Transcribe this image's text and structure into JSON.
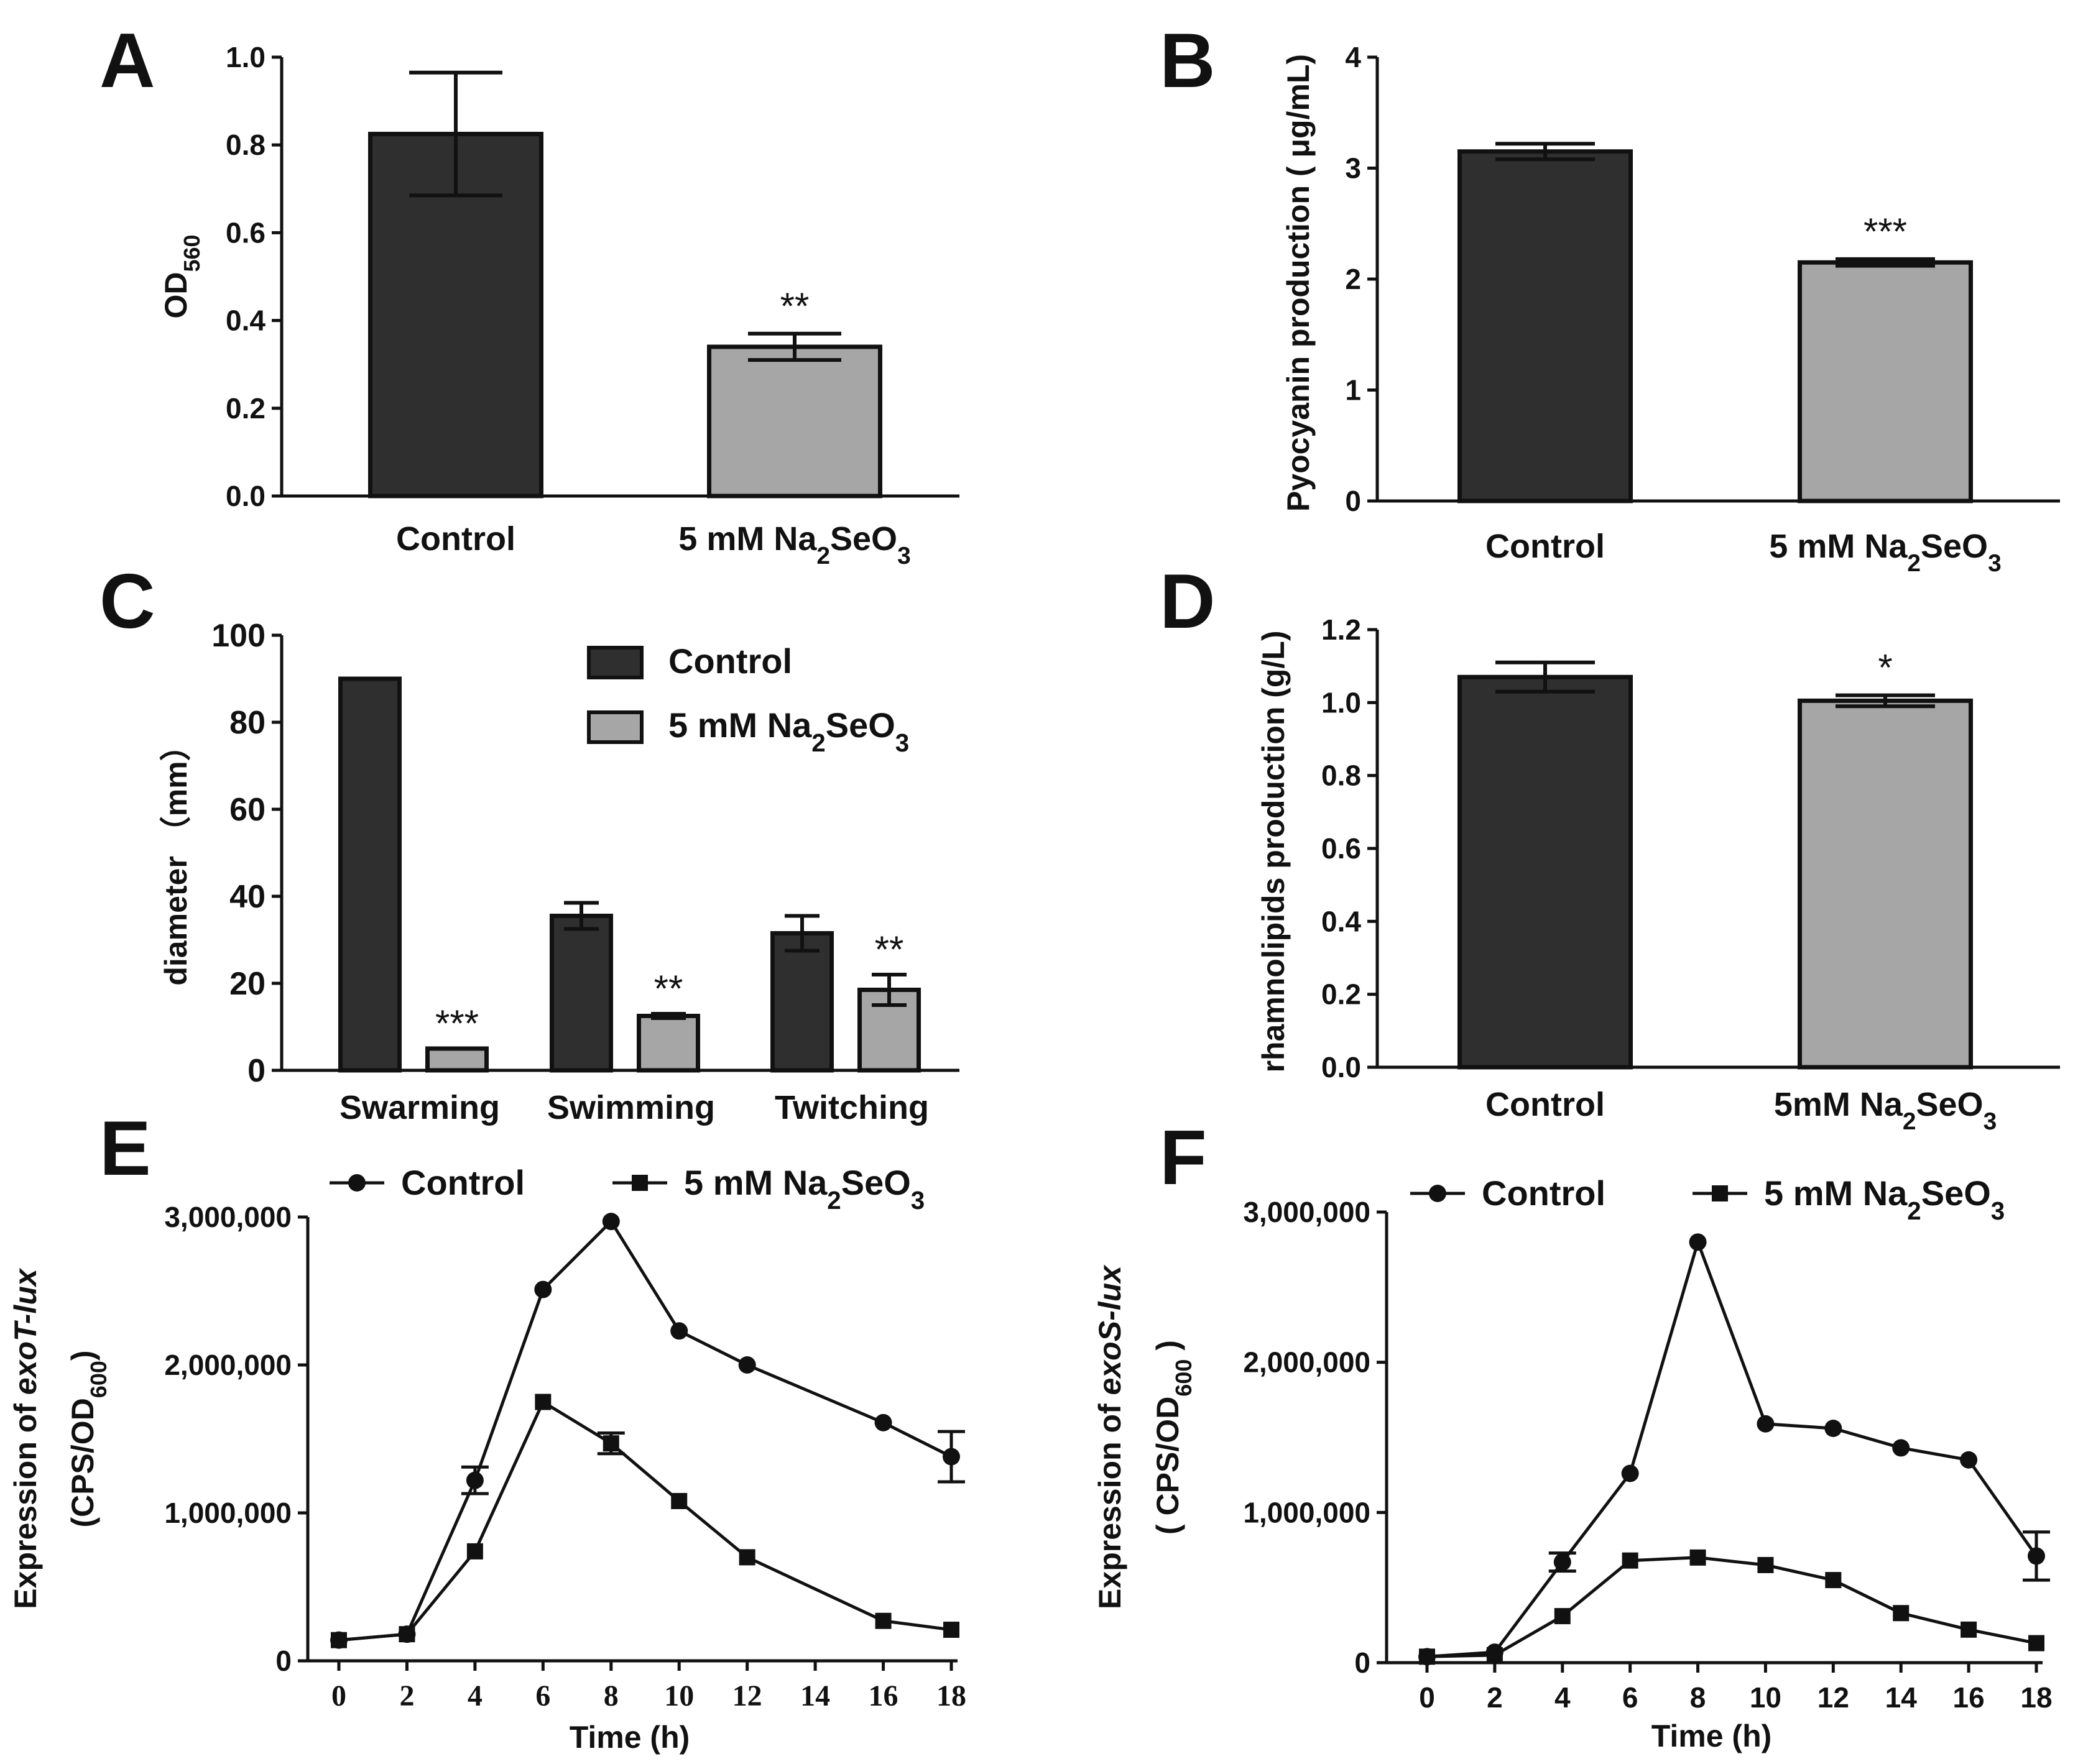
{
  "colors": {
    "control": "#2f2f2f",
    "treated": "#a6a6a7",
    "stroke": "#111111"
  },
  "chart_data": [
    {
      "id": "A",
      "panel": "A",
      "type": "bar",
      "ylabel": "OD",
      "ylabel_sub": "560",
      "ylim": [
        0,
        1.0
      ],
      "yticks": [
        "0.0",
        "0.2",
        "0.4",
        "0.6",
        "0.8",
        "1.0"
      ],
      "ytick_values": [
        0,
        0.2,
        0.4,
        0.6,
        0.8,
        1.0
      ],
      "categories": [
        {
          "label": "Control",
          "value": 0.825,
          "err": 0.14,
          "series": "control",
          "sig": ""
        },
        {
          "label": "5 mM Na",
          "sub1": "2",
          "mid": "SeO",
          "sub2": "3",
          "value": 0.34,
          "err": 0.03,
          "series": "treated",
          "sig": "**"
        }
      ]
    },
    {
      "id": "B",
      "panel": "B",
      "type": "bar",
      "ylabel": "Pyocyanin production ( μg/mL)",
      "ylim": [
        0,
        4
      ],
      "yticks": [
        "0",
        "1",
        "2",
        "3",
        "4"
      ],
      "ytick_values": [
        0,
        1,
        2,
        3,
        4
      ],
      "categories": [
        {
          "label": "Control",
          "value": 3.15,
          "err": 0.07,
          "series": "control",
          "sig": ""
        },
        {
          "label": "5 mM Na",
          "sub1": "2",
          "mid": "SeO",
          "sub2": "3",
          "value": 2.15,
          "err": 0.03,
          "series": "treated",
          "sig": "***"
        }
      ]
    },
    {
      "id": "C",
      "panel": "C",
      "type": "bar",
      "ylabel": "diameter （mm）",
      "ylim": [
        0,
        100
      ],
      "yticks": [
        "0",
        "20",
        "40",
        "60",
        "80",
        "100"
      ],
      "ytick_values": [
        0,
        20,
        40,
        60,
        80,
        100
      ],
      "groups": [
        "Swarming",
        "Swimming",
        "Twitching"
      ],
      "series": [
        {
          "name": "Control",
          "key": "control",
          "values": [
            90,
            35.5,
            31.5
          ],
          "errors": [
            0,
            3,
            4
          ],
          "sig": [
            "",
            "",
            ""
          ]
        },
        {
          "name": "5 mM Na",
          "sub1": "2",
          "mid": "SeO",
          "sub2": "3",
          "key": "treated",
          "values": [
            5,
            12.5,
            18.5
          ],
          "errors": [
            0,
            0.5,
            3.5
          ],
          "sig": [
            "***",
            "**",
            "**"
          ]
        }
      ]
    },
    {
      "id": "D",
      "panel": "D",
      "type": "bar",
      "ylabel": "rhamnolipids production (g/L)",
      "ylim": [
        0,
        1.2
      ],
      "yticks": [
        "0.0",
        "0.2",
        "0.4",
        "0.6",
        "0.8",
        "1.0",
        "1.2"
      ],
      "ytick_values": [
        0,
        0.2,
        0.4,
        0.6,
        0.8,
        1.0,
        1.2
      ],
      "categories": [
        {
          "label": "Control",
          "value": 1.07,
          "err": 0.04,
          "series": "control",
          "sig": ""
        },
        {
          "label": "5mM Na",
          "sub1": "2",
          "mid": "SeO",
          "sub2": "3",
          "value": 1.005,
          "err": 0.015,
          "series": "treated",
          "sig": "*"
        }
      ]
    },
    {
      "id": "E",
      "panel": "E",
      "type": "line",
      "ylabel_pre": "Expression of ",
      "ylabel_gene": "exoT-lux",
      "ylabel2_pre": "(CPS/OD",
      "ylabel2_sub": "600",
      "ylabel2_post": ")",
      "xlabel": "Time (h)",
      "xticks": [
        "0",
        "2",
        "4",
        "6",
        "8",
        "10",
        "12",
        "14",
        "16",
        "18"
      ],
      "xtick_values": [
        0,
        2,
        4,
        6,
        8,
        10,
        12,
        14,
        16,
        18
      ],
      "yticks": [
        "0",
        "1,000,000",
        "2,000,000",
        "3,000,000"
      ],
      "ytick_values": [
        0,
        1000000,
        2000000,
        3000000
      ],
      "xlim": [
        0,
        18
      ],
      "ylim": [
        0,
        3000000
      ],
      "series": [
        {
          "name": "Control",
          "marker": "circle",
          "x": [
            0,
            2,
            4,
            6,
            8,
            10,
            12,
            16,
            18
          ],
          "y": [
            140000,
            180000,
            1220000,
            2510000,
            2970000,
            2230000,
            2000000,
            1610000,
            1380000
          ],
          "err": [
            0,
            0,
            90000,
            0,
            0,
            0,
            0,
            0,
            170000
          ]
        },
        {
          "name": "5 mM Na",
          "sub1": "2",
          "mid": "SeO",
          "sub2": "3",
          "marker": "square",
          "x": [
            0,
            2,
            4,
            6,
            8,
            10,
            12,
            16,
            18
          ],
          "y": [
            140000,
            180000,
            740000,
            1750000,
            1470000,
            1080000,
            700000,
            270000,
            210000
          ],
          "err": [
            0,
            0,
            0,
            0,
            70000,
            0,
            0,
            0,
            0
          ]
        }
      ]
    },
    {
      "id": "F",
      "panel": "F",
      "type": "line",
      "ylabel_pre": "Expression of ",
      "ylabel_gene": "exoS-lux",
      "ylabel2_pre": "( CPS/OD",
      "ylabel2_sub": "600",
      "ylabel2_post": " )",
      "xlabel": "Time (h)",
      "xticks": [
        "0",
        "2",
        "4",
        "6",
        "8",
        "10",
        "12",
        "14",
        "16",
        "18"
      ],
      "xtick_values": [
        0,
        2,
        4,
        6,
        8,
        10,
        12,
        14,
        16,
        18
      ],
      "yticks": [
        "0",
        "1,000,000",
        "2,000,000",
        "3,000,000"
      ],
      "ytick_values": [
        0,
        1000000,
        2000000,
        3000000
      ],
      "xlim": [
        0,
        18
      ],
      "ylim": [
        0,
        3000000
      ],
      "series": [
        {
          "name": "Control",
          "marker": "circle",
          "x": [
            0,
            2,
            4,
            6,
            8,
            10,
            12,
            14,
            16,
            18
          ],
          "y": [
            40000,
            70000,
            670000,
            1260000,
            2800000,
            1590000,
            1560000,
            1430000,
            1350000,
            710000
          ],
          "err": [
            0,
            0,
            60000,
            0,
            0,
            0,
            0,
            0,
            0,
            160000
          ]
        },
        {
          "name": "5 mM Na",
          "sub1": "2",
          "mid": "SeO",
          "sub2": "3",
          "marker": "square",
          "x": [
            0,
            2,
            4,
            6,
            8,
            10,
            12,
            14,
            16,
            18
          ],
          "y": [
            40000,
            50000,
            310000,
            680000,
            700000,
            650000,
            550000,
            330000,
            220000,
            130000
          ],
          "err": [
            0,
            0,
            0,
            0,
            0,
            0,
            0,
            0,
            0,
            0
          ]
        }
      ]
    }
  ]
}
